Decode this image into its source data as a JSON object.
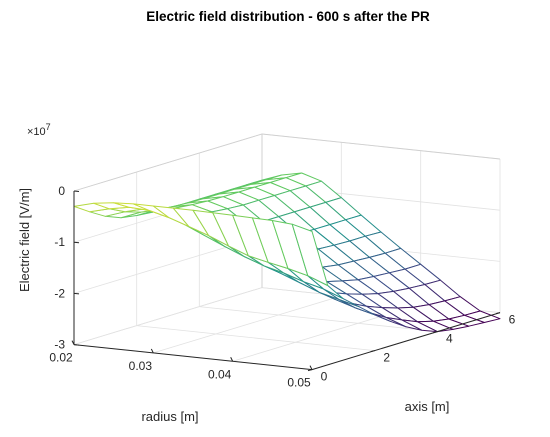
{
  "chart_data": {
    "type": "surface",
    "title": "Electric field distribution - 600 s after the PR",
    "xlabel": "radius [m]",
    "ylabel": "axis [m]",
    "zlabel": "Electric field [V/m]",
    "exponent_label": "×10",
    "exponent_power": "7",
    "xlim": [
      0.02,
      0.05
    ],
    "ylim": [
      0,
      6
    ],
    "zlim": [
      -30000000.0,
      0
    ],
    "x_ticks": [
      {
        "value": 0.02,
        "label": "0.02"
      },
      {
        "value": 0.03,
        "label": "0.03"
      },
      {
        "value": 0.04,
        "label": "0.04"
      },
      {
        "value": 0.05,
        "label": "0.05"
      }
    ],
    "y_ticks": [
      {
        "value": 0,
        "label": "0"
      },
      {
        "value": 2,
        "label": "2"
      },
      {
        "value": 4,
        "label": "4"
      },
      {
        "value": 6,
        "label": "6"
      }
    ],
    "z_ticks": [
      {
        "value": 0,
        "label": "0"
      },
      {
        "value": -10000000.0,
        "label": "-1"
      },
      {
        "value": -20000000.0,
        "label": "-2"
      },
      {
        "value": -30000000.0,
        "label": "-3"
      }
    ],
    "grid": true,
    "colormap": [
      "#440154",
      "#3b528b",
      "#21918c",
      "#5ec962",
      "#fde725"
    ],
    "surface": {
      "x": [
        0.02,
        0.0225,
        0.025,
        0.0275,
        0.03,
        0.0325,
        0.035,
        0.0375,
        0.04,
        0.0425,
        0.045,
        0.0475,
        0.05
      ],
      "y": [
        0,
        0.5,
        1,
        1.5,
        2,
        2.5,
        3,
        3.5,
        4,
        4.5,
        5,
        5.5,
        6
      ],
      "z": [
        [
          -0.3,
          -0.2,
          -0.15,
          -0.13,
          -0.13,
          -0.13,
          -0.13,
          -0.14,
          -0.15,
          -0.16,
          -0.17,
          -0.2,
          -0.3
        ],
        [
          -0.5,
          -0.4,
          -0.33,
          -0.35,
          -0.45,
          -0.58,
          -0.72,
          -0.88,
          -1.03,
          -1.12,
          -1.2,
          -1.3,
          -1.45
        ],
        [
          -0.68,
          -0.55,
          -0.45,
          -0.5,
          -0.68,
          -0.85,
          -1.02,
          -1.18,
          -1.32,
          -1.42,
          -1.55,
          -1.65,
          -1.8
        ],
        [
          -0.8,
          -0.65,
          -0.55,
          -0.62,
          -0.85,
          -1.05,
          -1.25,
          -1.4,
          -1.55,
          -1.7,
          -1.85,
          -1.95,
          -2.05
        ],
        [
          -0.85,
          -0.7,
          -0.62,
          -0.7,
          -0.95,
          -1.2,
          -1.4,
          -1.58,
          -1.75,
          -1.92,
          -2.08,
          -2.2,
          -2.3
        ],
        [
          -0.88,
          -0.73,
          -0.65,
          -0.75,
          -1.02,
          -1.28,
          -1.5,
          -1.7,
          -1.9,
          -2.08,
          -2.25,
          -2.4,
          -2.52
        ],
        [
          -0.9,
          -0.75,
          -0.67,
          -0.78,
          -1.05,
          -1.32,
          -1.55,
          -1.78,
          -2.0,
          -2.2,
          -2.4,
          -2.58,
          -2.72
        ],
        [
          -0.9,
          -0.76,
          -0.68,
          -0.8,
          -1.08,
          -1.35,
          -1.6,
          -1.85,
          -2.08,
          -2.3,
          -2.52,
          -2.72,
          -2.88
        ],
        [
          -0.9,
          -0.76,
          -0.68,
          -0.8,
          -1.08,
          -1.37,
          -1.63,
          -1.9,
          -2.15,
          -2.38,
          -2.62,
          -2.85,
          -3.0
        ],
        [
          -0.9,
          -0.76,
          -0.68,
          -0.8,
          -1.08,
          -1.38,
          -1.65,
          -1.92,
          -2.18,
          -2.43,
          -2.7,
          -2.93,
          -3.05
        ],
        [
          -0.9,
          -0.76,
          -0.68,
          -0.8,
          -1.08,
          -1.38,
          -1.66,
          -1.94,
          -2.2,
          -2.46,
          -2.74,
          -2.98,
          -3.08
        ],
        [
          -0.9,
          -0.76,
          -0.68,
          -0.8,
          -1.08,
          -1.38,
          -1.66,
          -1.95,
          -2.22,
          -2.48,
          -2.76,
          -3.0,
          -3.1
        ],
        [
          -0.9,
          -0.76,
          -0.68,
          -0.8,
          -1.08,
          -1.38,
          -1.67,
          -1.95,
          -2.22,
          -2.49,
          -2.77,
          -3.01,
          -3.12
        ]
      ],
      "z_scale": 10000000
    }
  }
}
